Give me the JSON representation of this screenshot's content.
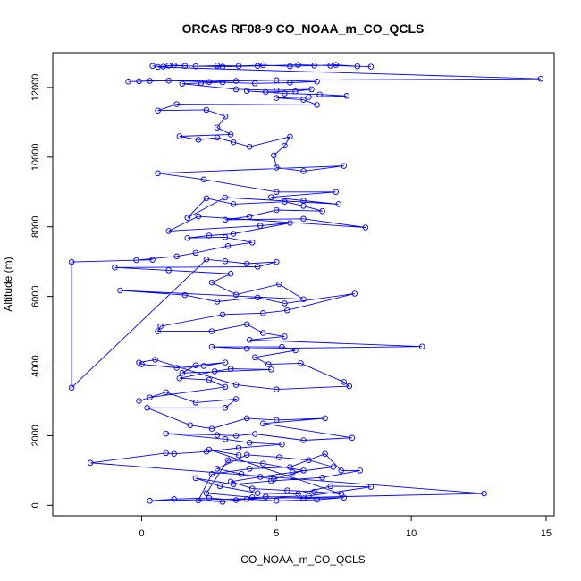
{
  "chart_data": {
    "type": "line",
    "title": "ORCAS RF08-9 CO_NOAA_m_CO_QCLS",
    "xlabel": "CO_NOAA_m_CO_QCLS",
    "ylabel": "Altitude (m)",
    "xlim": [
      -3.3,
      15.3
    ],
    "ylim": [
      -300,
      13000
    ],
    "xticks": [
      0,
      5,
      10,
      15
    ],
    "yticks": [
      0,
      2000,
      4000,
      6000,
      8000,
      10000,
      12000
    ],
    "grid": false,
    "marker": "open-circle",
    "color": "#0000ff",
    "series": [
      {
        "points": [
          [
            0.4,
            12620
          ],
          [
            0.8,
            12600
          ],
          [
            1.2,
            12640
          ],
          [
            2.0,
            12610
          ],
          [
            2.8,
            12630
          ],
          [
            3.6,
            12620
          ],
          [
            4.5,
            12640
          ],
          [
            5.5,
            12610
          ],
          [
            6.4,
            12630
          ],
          [
            7.2,
            12650
          ],
          [
            8.0,
            12610
          ],
          [
            8.5,
            12600
          ],
          [
            7.0,
            12630
          ],
          [
            5.8,
            12650
          ],
          [
            4.3,
            12620
          ],
          [
            3.0,
            12600
          ],
          [
            1.6,
            12620
          ],
          [
            1.0,
            12630
          ],
          [
            0.6,
            12590
          ],
          [
            14.8,
            12250
          ],
          [
            0.3,
            12190
          ],
          [
            -0.1,
            12180
          ],
          [
            -0.5,
            12170
          ],
          [
            1.0,
            12200
          ],
          [
            2.5,
            12160
          ],
          [
            3.5,
            12190
          ],
          [
            5.0,
            12210
          ],
          [
            6.5,
            12170
          ],
          [
            5.5,
            12140
          ],
          [
            4.2,
            12120
          ],
          [
            3.0,
            12150
          ],
          [
            2.2,
            12130
          ],
          [
            1.5,
            12110
          ],
          [
            3.5,
            11950
          ],
          [
            5.0,
            11920
          ],
          [
            6.3,
            11950
          ],
          [
            5.7,
            11890
          ],
          [
            4.6,
            11870
          ],
          [
            3.9,
            11900
          ],
          [
            5.3,
            11830
          ],
          [
            6.6,
            11800
          ],
          [
            7.6,
            11760
          ],
          [
            6.2,
            11730
          ],
          [
            5.0,
            11700
          ],
          [
            6.0,
            11650
          ],
          [
            6.5,
            11500
          ],
          [
            1.3,
            11520
          ],
          [
            0.6,
            11340
          ],
          [
            2.4,
            11360
          ],
          [
            3.1,
            11170
          ],
          [
            2.8,
            10850
          ],
          [
            3.3,
            10650
          ],
          [
            1.4,
            10600
          ],
          [
            2.1,
            10500
          ],
          [
            2.8,
            10560
          ],
          [
            3.4,
            10430
          ],
          [
            4.0,
            10300
          ],
          [
            5.5,
            10590
          ],
          [
            5.3,
            10330
          ],
          [
            4.9,
            10050
          ],
          [
            5.0,
            9700
          ],
          [
            6.0,
            9600
          ],
          [
            7.5,
            9750
          ],
          [
            0.6,
            9540
          ],
          [
            2.3,
            9360
          ],
          [
            5.0,
            9000
          ],
          [
            7.2,
            9000
          ],
          [
            4.8,
            8850
          ],
          [
            6.0,
            8750
          ],
          [
            7.3,
            8650
          ],
          [
            3.1,
            8840
          ],
          [
            1.7,
            8260
          ],
          [
            2.4,
            8820
          ],
          [
            3.4,
            8650
          ],
          [
            5.3,
            8720
          ],
          [
            6.0,
            8600
          ],
          [
            6.7,
            8450
          ],
          [
            5.0,
            8480
          ],
          [
            4.0,
            8300
          ],
          [
            3.1,
            8200
          ],
          [
            6.0,
            8230
          ],
          [
            8.3,
            7980
          ],
          [
            2.1,
            8300
          ],
          [
            1.0,
            7880
          ],
          [
            4.4,
            8030
          ],
          [
            5.5,
            8110
          ],
          [
            3.4,
            7800
          ],
          [
            2.5,
            7750
          ],
          [
            1.7,
            7680
          ],
          [
            3.1,
            7700
          ],
          [
            4.1,
            7550
          ],
          [
            3.2,
            7450
          ],
          [
            2.0,
            7250
          ],
          [
            1.3,
            7150
          ],
          [
            -0.2,
            7040
          ],
          [
            0.4,
            7050
          ],
          [
            -2.6,
            6990
          ],
          [
            -2.6,
            3380
          ],
          [
            2.4,
            7060
          ],
          [
            3.1,
            7010
          ],
          [
            3.9,
            6940
          ],
          [
            5.0,
            6990
          ],
          [
            4.3,
            6850
          ],
          [
            -1.0,
            6830
          ],
          [
            1.0,
            6750
          ],
          [
            3.3,
            6650
          ],
          [
            2.6,
            6400
          ],
          [
            3.5,
            6050
          ],
          [
            5.1,
            6350
          ],
          [
            6.0,
            5920
          ],
          [
            -0.8,
            6170
          ],
          [
            1.6,
            6040
          ],
          [
            2.8,
            5850
          ],
          [
            4.3,
            5970
          ],
          [
            5.3,
            5800
          ],
          [
            7.9,
            6080
          ],
          [
            5.4,
            5600
          ],
          [
            4.5,
            5520
          ],
          [
            3.0,
            5480
          ],
          [
            0.7,
            5140
          ],
          [
            0.6,
            5000
          ],
          [
            2.6,
            5000
          ],
          [
            3.9,
            5200
          ],
          [
            4.5,
            4950
          ],
          [
            5.3,
            4850
          ],
          [
            4.0,
            4750
          ],
          [
            10.4,
            4560
          ],
          [
            3.9,
            4500
          ],
          [
            2.6,
            4550
          ],
          [
            5.2,
            4550
          ],
          [
            5.7,
            4450
          ],
          [
            4.2,
            4250
          ],
          [
            4.7,
            4050
          ],
          [
            5.9,
            4080
          ],
          [
            7.5,
            3540
          ],
          [
            7.7,
            3420
          ],
          [
            5.0,
            3330
          ],
          [
            3.5,
            3460
          ],
          [
            0.5,
            4180
          ],
          [
            -0.1,
            4100
          ],
          [
            0.0,
            4050
          ],
          [
            1.3,
            3950
          ],
          [
            2.3,
            4000
          ],
          [
            3.1,
            4100
          ],
          [
            2.0,
            4020
          ],
          [
            1.5,
            3800
          ],
          [
            4.8,
            3900
          ],
          [
            3.3,
            3920
          ],
          [
            2.7,
            3850
          ],
          [
            1.4,
            3650
          ],
          [
            2.5,
            3600
          ],
          [
            3.1,
            3400
          ],
          [
            0.3,
            3100
          ],
          [
            -0.1,
            3000
          ],
          [
            0.9,
            3250
          ],
          [
            2.0,
            2950
          ],
          [
            3.5,
            3050
          ],
          [
            3.1,
            2800
          ],
          [
            0.2,
            2800
          ],
          [
            1.8,
            2300
          ],
          [
            2.6,
            2200
          ],
          [
            3.9,
            2500
          ],
          [
            5.0,
            2450
          ],
          [
            6.8,
            2500
          ],
          [
            4.5,
            2350
          ],
          [
            7.8,
            1940
          ],
          [
            6.0,
            1870
          ],
          [
            4.2,
            2050
          ],
          [
            3.5,
            2000
          ],
          [
            2.8,
            2020
          ],
          [
            0.9,
            2060
          ],
          [
            3.1,
            1900
          ],
          [
            4.0,
            1800
          ],
          [
            5.2,
            1750
          ],
          [
            3.6,
            1650
          ],
          [
            2.4,
            1540
          ],
          [
            1.2,
            1480
          ],
          [
            0.9,
            1500
          ],
          [
            -1.9,
            1220
          ],
          [
            12.7,
            340
          ],
          [
            0.3,
            130
          ],
          [
            1.2,
            180
          ],
          [
            2.5,
            210
          ],
          [
            3.5,
            150
          ],
          [
            4.6,
            250
          ],
          [
            6.0,
            200
          ],
          [
            7.5,
            220
          ],
          [
            6.5,
            160
          ],
          [
            5.0,
            130
          ],
          [
            3.9,
            180
          ],
          [
            3.0,
            100
          ],
          [
            2.1,
            140
          ],
          [
            2.6,
            900
          ],
          [
            4.0,
            1050
          ],
          [
            5.5,
            1100
          ],
          [
            6.8,
            1480
          ],
          [
            7.4,
            1000
          ],
          [
            8.1,
            1000
          ],
          [
            6.7,
            800
          ],
          [
            4.8,
            700
          ],
          [
            3.4,
            600
          ],
          [
            2.0,
            780
          ],
          [
            2.9,
            550
          ],
          [
            4.3,
            350
          ],
          [
            5.8,
            330
          ],
          [
            7.0,
            550
          ],
          [
            8.5,
            530
          ],
          [
            6.2,
            270
          ],
          [
            4.1,
            230
          ],
          [
            2.4,
            350
          ],
          [
            3.2,
            1300
          ],
          [
            4.5,
            1200
          ],
          [
            6.0,
            1000
          ],
          [
            4.9,
            750
          ],
          [
            3.7,
            900
          ],
          [
            2.8,
            1050
          ],
          [
            3.9,
            1450
          ],
          [
            5.1,
            1380
          ],
          [
            6.2,
            1300
          ],
          [
            7.1,
            1100
          ],
          [
            5.6,
            950
          ],
          [
            4.4,
            820
          ],
          [
            3.3,
            680
          ],
          [
            4.1,
            480
          ],
          [
            5.4,
            430
          ],
          [
            6.4,
            390
          ],
          [
            7.4,
            330
          ],
          [
            2.5,
            1600
          ],
          [
            3.6,
            1440
          ]
        ]
      }
    ]
  }
}
